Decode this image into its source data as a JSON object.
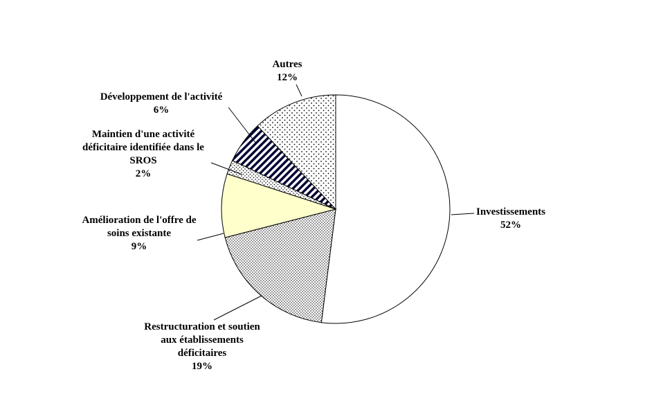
{
  "chart_data": {
    "type": "pie",
    "title": "",
    "unit": "%",
    "direction": "clockwise",
    "start_angle_deg": 0,
    "legend_position": "none",
    "grid": false,
    "colors": {
      "outline": "#000000",
      "background": "#ffffff",
      "yellow_slice": "#ffffcc",
      "hatch_dark": "#000033",
      "label_text": "#000000"
    },
    "slices": [
      {
        "name": "investissements",
        "label": "Investissements",
        "label_lines": [
          "Investissements"
        ],
        "value": 52,
        "pct_label": "52%",
        "fill": "#ffffff"
      },
      {
        "name": "restructuration",
        "label": "Restructuration et soutien aux établissements déficitaires",
        "label_lines": [
          "Restructuration et soutien",
          "aux établissements",
          "déficitaires"
        ],
        "value": 19,
        "pct_label": "19%",
        "fill": "pattern:dots-dense"
      },
      {
        "name": "amelioration",
        "label": "Amélioration de l'offre de soins existante",
        "label_lines": [
          "Amélioration de l'offre de",
          "soins existante"
        ],
        "value": 9,
        "pct_label": "9%",
        "fill": "#ffffcc"
      },
      {
        "name": "maintien",
        "label": "Maintien d'une activité déficitaire identifiée dans le SROS",
        "label_lines": [
          "Maintien d'une activité",
          "déficitaire identifiée dans le",
          "SROS"
        ],
        "value": 2,
        "pct_label": "2%",
        "fill": "pattern:dots-light"
      },
      {
        "name": "developpement",
        "label": "Développement de l'activité",
        "label_lines": [
          "Développement de l'activité"
        ],
        "value": 6,
        "pct_label": "6%",
        "fill": "pattern:diagonal-dark"
      },
      {
        "name": "autres",
        "label": "Autres",
        "label_lines": [
          "Autres"
        ],
        "value": 12,
        "pct_label": "12%",
        "fill": "pattern:dots-sparse"
      }
    ]
  }
}
